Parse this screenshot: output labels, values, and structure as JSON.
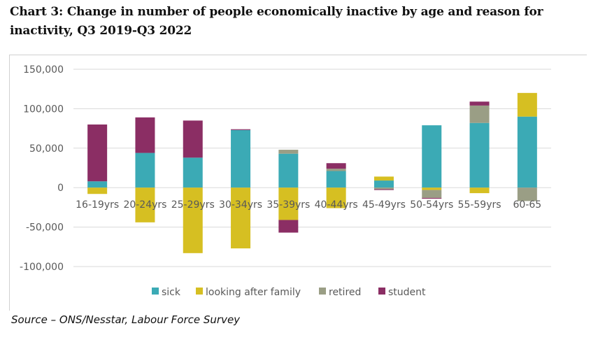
{
  "title": "Chart 3: Change in number of people economically inactive by age and reason for inactivity, Q3 2019-Q3 2022",
  "source": "Source – ONS/Nesstar, Labour Force Survey",
  "chart_data": {
    "type": "bar",
    "stacked": true,
    "title": "Chart 3: Change in number of people economically inactive by age and reason for inactivity, Q3 2019-Q3 2022",
    "xlabel": "",
    "ylabel": "",
    "ylim": [
      -100000,
      150000
    ],
    "yticks": [
      150000,
      100000,
      50000,
      0,
      -50000,
      -100000
    ],
    "ytick_labels": [
      "150,000",
      "100,000",
      "50,000",
      "0",
      "-50,000",
      "-100,000"
    ],
    "grid": true,
    "legend_position": "bottom",
    "categories": [
      "16-19yrs",
      "20-24yrs",
      "25-29yrs",
      "30-34yrs",
      "35-39yrs",
      "40-44yrs",
      "45-49yrs",
      "50-54yrs",
      "55-59yrs",
      "60-65"
    ],
    "series": [
      {
        "name": "sick",
        "color": "#3BAAB5",
        "values": [
          8000,
          44000,
          38000,
          73000,
          43000,
          21000,
          9000,
          79000,
          82000,
          90000
        ]
      },
      {
        "name": "looking after family",
        "color": "#D6BF22",
        "values": [
          -8000,
          -44000,
          -83000,
          -77000,
          -41000,
          -26000,
          5000,
          -3000,
          -7000,
          30000
        ]
      },
      {
        "name": "retired",
        "color": "#9A9E85",
        "values": [
          0,
          0,
          0,
          0,
          5000,
          3000,
          -2000,
          -10000,
          22000,
          -17000
        ]
      },
      {
        "name": "student",
        "color": "#8B2E64",
        "values": [
          72000,
          45000,
          47000,
          1000,
          -16000,
          7000,
          -1000,
          -1000,
          5000,
          0
        ]
      }
    ]
  }
}
